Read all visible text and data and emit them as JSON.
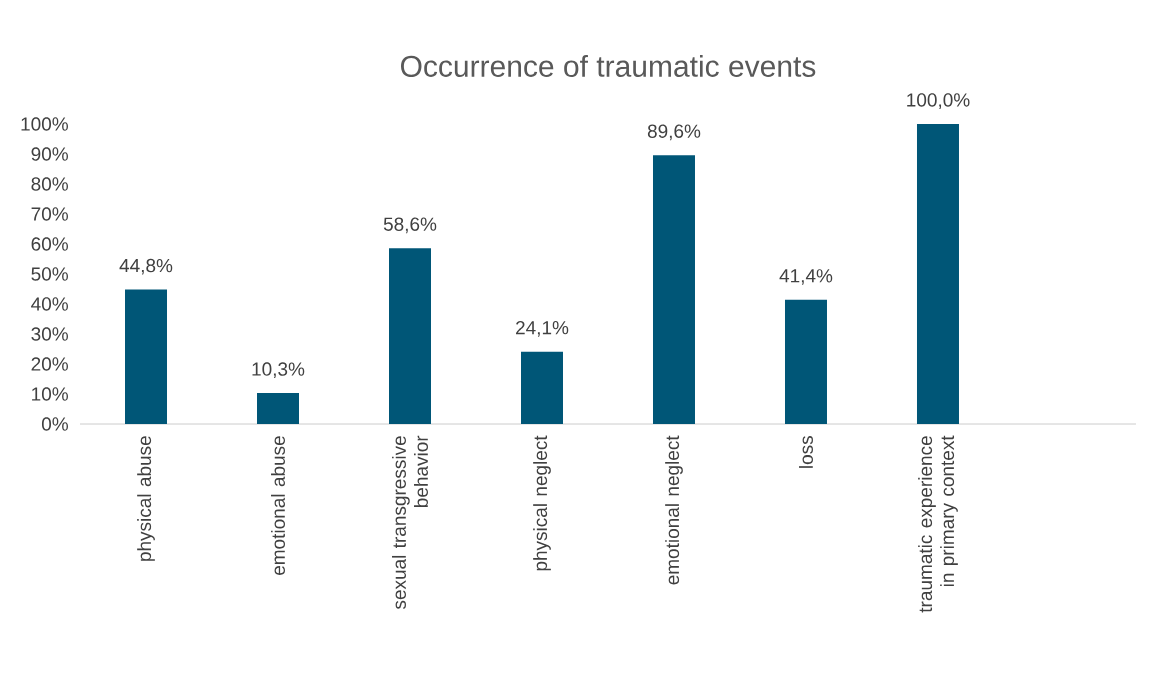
{
  "chart_data": {
    "type": "bar",
    "title": "Occurrence of traumatic events",
    "categories": [
      "physical abuse",
      "emotional abuse",
      "sexual transgressive behavior",
      "physical neglect",
      "emotional neglect",
      "loss",
      "traumatic experience in primary context",
      null
    ],
    "values": [
      44.8,
      10.3,
      58.6,
      24.1,
      89.6,
      41.4,
      100,
      null
    ],
    "value_labels": [
      "44,8%",
      "10,3%",
      "58,6%",
      "24,1%",
      "89,6%",
      "41,4%",
      "100,0%",
      null
    ],
    "color": "#005677",
    "ylim": [
      0,
      100
    ],
    "yticks": [
      {
        "value": 0,
        "label": "0%"
      },
      {
        "value": 10,
        "label": "10%"
      },
      {
        "value": 20,
        "label": "20%"
      },
      {
        "value": 30,
        "label": "30%"
      },
      {
        "value": 40,
        "label": "40%"
      },
      {
        "value": 50,
        "label": "50%"
      },
      {
        "value": 60,
        "label": "60%"
      },
      {
        "value": 70,
        "label": "70%"
      },
      {
        "value": 80,
        "label": "80%"
      },
      {
        "value": 90,
        "label": "90%"
      },
      {
        "value": 100,
        "label": "100%"
      }
    ]
  }
}
